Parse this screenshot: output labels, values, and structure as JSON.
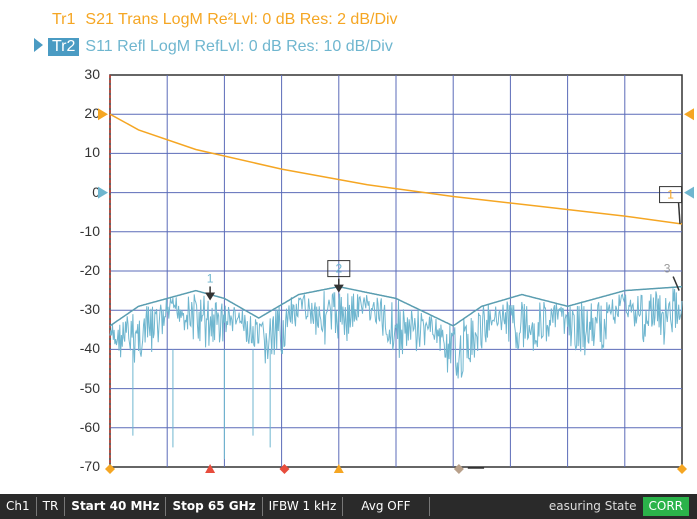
{
  "traces": [
    {
      "name": "Tr1",
      "text": "S21 Trans LogM Re²Lvl: 0  dB Res: 2  dB/Div",
      "color": "#f5a623"
    },
    {
      "name": "Tr2",
      "text": "S11 Refl LogM RefLvl: 0  dB Res: 10  dB/Div",
      "color": "#6fb6cf"
    }
  ],
  "markers": {
    "m1": "1",
    "m2": "2",
    "m3": "3",
    "m1_box": "1"
  },
  "status": {
    "channel": "Ch1",
    "mode": "TR",
    "start": "Start 40 MHz",
    "stop": "Stop 65 GHz",
    "ifbw": "IFBW 1 kHz",
    "avg": "Avg OFF",
    "state": "easuring State",
    "corr": "CORR"
  },
  "chart_data": {
    "type": "line",
    "y_ticks": [
      "30",
      "20",
      "10",
      "0",
      "-10",
      "-20",
      "-30",
      "-40",
      "-50",
      "-60",
      "-70"
    ],
    "ylim": [
      -70,
      30
    ],
    "grid": true,
    "x_start": "40 MHz",
    "x_stop": "65 GHz",
    "series": [
      {
        "name": "Tr1",
        "x_frac": [
          0,
          0.05,
          0.15,
          0.3,
          0.45,
          0.6,
          0.75,
          0.9,
          1.0
        ],
        "y": [
          20,
          16,
          11,
          6,
          2,
          -1,
          -3.5,
          -6,
          -8
        ]
      },
      {
        "name": "Tr2",
        "x_frac": [
          0,
          0.05,
          0.15,
          0.2,
          0.26,
          0.33,
          0.4,
          0.5,
          0.6,
          0.65,
          0.72,
          0.8,
          0.9,
          1.0
        ],
        "y": [
          -35,
          -30,
          -26,
          -28,
          -33,
          -27,
          -25,
          -28,
          -35,
          -30,
          -27,
          -30,
          -26,
          -25
        ]
      }
    ]
  }
}
